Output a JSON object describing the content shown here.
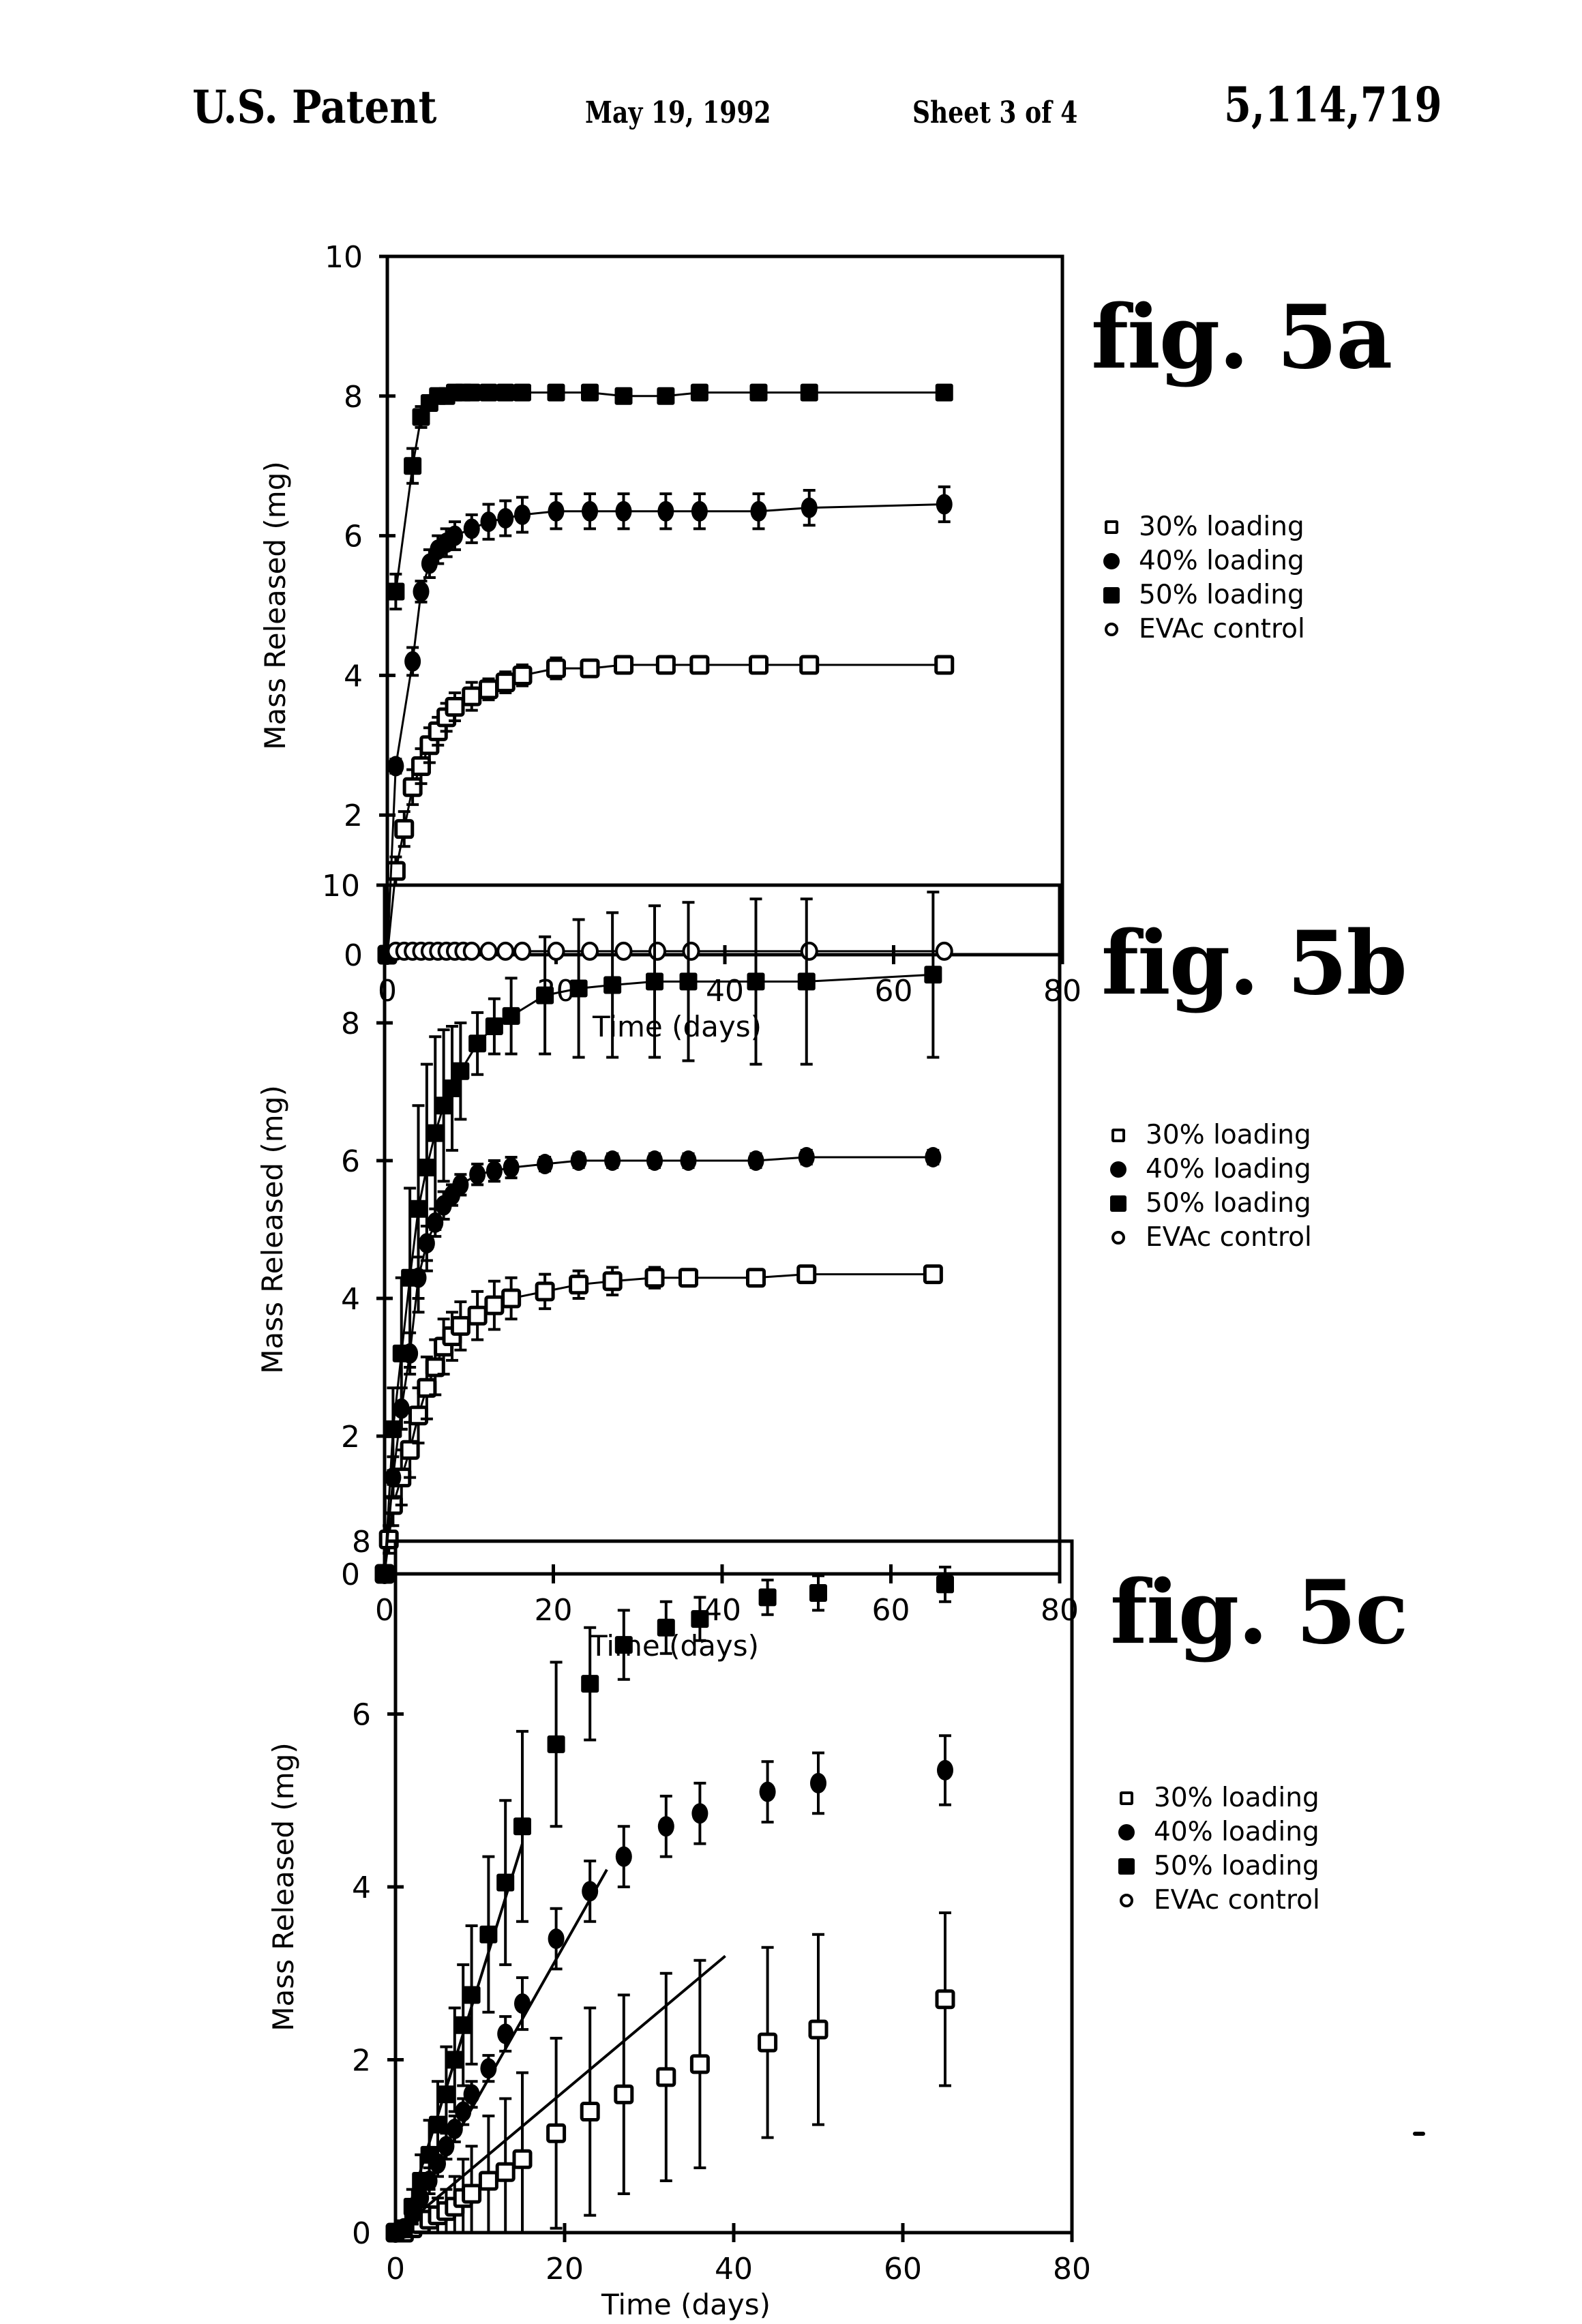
{
  "header": {
    "title": "U.S. Patent",
    "date": "May 19, 1992",
    "sheet": "Sheet 3 of 4",
    "patent_number": "5,114,719"
  },
  "legend_labels": [
    "30% loading",
    "40% loading",
    "50% loading",
    "EVAc control"
  ],
  "colors": {
    "ink": "#000000",
    "paper": "#ffffff"
  },
  "chart_data": [
    {
      "id": "fig5a",
      "figure_label": "fig. 5a",
      "type": "scatter",
      "title": "",
      "xlabel": "Time (days)",
      "ylabel": "Mass Released (mg)",
      "xlim": [
        0,
        80
      ],
      "ylim": [
        0,
        10
      ],
      "xticks": [
        0,
        20,
        40,
        60,
        80
      ],
      "yticks": [
        0,
        2,
        4,
        6,
        8,
        10
      ],
      "grid": false,
      "legend_position": "right",
      "series": [
        {
          "name": "30% loading",
          "marker": "open-square",
          "connected": true,
          "x": [
            0,
            1,
            2,
            3,
            4,
            5,
            6,
            7,
            8,
            10,
            12,
            14,
            16,
            20,
            24,
            28,
            33,
            37,
            44,
            50,
            66
          ],
          "y": [
            0,
            1.2,
            1.8,
            2.4,
            2.7,
            3.0,
            3.2,
            3.4,
            3.55,
            3.7,
            3.8,
            3.9,
            4.0,
            4.1,
            4.1,
            4.15,
            4.15,
            4.15,
            4.15,
            4.15,
            4.15
          ],
          "err": [
            0,
            0.2,
            0.25,
            0.25,
            0.25,
            0.25,
            0.2,
            0.2,
            0.2,
            0.2,
            0.15,
            0.15,
            0.15,
            0.15,
            0.1,
            0.1,
            0.1,
            0.1,
            0.05,
            0.05,
            0.05
          ]
        },
        {
          "name": "40% loading",
          "marker": "filled-circle",
          "connected": true,
          "x": [
            0,
            1,
            3,
            4,
            5,
            6,
            7,
            8,
            10,
            12,
            14,
            16,
            20,
            24,
            28,
            33,
            37,
            44,
            50,
            66
          ],
          "y": [
            0,
            2.7,
            4.2,
            5.2,
            5.6,
            5.8,
            5.9,
            6.0,
            6.1,
            6.2,
            6.25,
            6.3,
            6.35,
            6.35,
            6.35,
            6.35,
            6.35,
            6.35,
            6.4,
            6.45
          ],
          "err": [
            0,
            0.1,
            0.2,
            0.15,
            0.2,
            0.2,
            0.2,
            0.2,
            0.2,
            0.25,
            0.25,
            0.25,
            0.25,
            0.25,
            0.25,
            0.25,
            0.25,
            0.25,
            0.25,
            0.25
          ]
        },
        {
          "name": "50% loading",
          "marker": "filled-square",
          "connected": true,
          "x": [
            1,
            3,
            4,
            5,
            6,
            7,
            8,
            9,
            10,
            12,
            14,
            16,
            20,
            24,
            28,
            33,
            37,
            44,
            50,
            66
          ],
          "y": [
            5.2,
            7.0,
            7.7,
            7.9,
            8.0,
            8.0,
            8.05,
            8.05,
            8.05,
            8.05,
            8.05,
            8.05,
            8.05,
            8.05,
            8.0,
            8.0,
            8.05,
            8.05,
            8.05,
            8.05
          ],
          "err": [
            0.25,
            0.25,
            0.15,
            0.1,
            0.05,
            0.05,
            0.05,
            0.05,
            0.05,
            0.05,
            0.05,
            0.05,
            0.05,
            0.05,
            0.05,
            0.05,
            0.05,
            0.05,
            0.05,
            0.05
          ]
        },
        {
          "name": "EVAc control",
          "marker": "open-circle",
          "connected": true,
          "x": [
            1,
            2,
            3,
            4,
            5,
            6,
            7,
            8,
            9,
            10,
            12,
            14,
            16,
            20,
            24,
            28,
            32,
            36,
            50,
            66
          ],
          "y": [
            0.05,
            0.05,
            0.05,
            0.05,
            0.05,
            0.05,
            0.05,
            0.05,
            0.05,
            0.05,
            0.05,
            0.05,
            0.05,
            0.05,
            0.05,
            0.05,
            0.05,
            0.05,
            0.05,
            0.05
          ],
          "err": [
            0,
            0,
            0,
            0,
            0,
            0,
            0,
            0,
            0,
            0,
            0,
            0,
            0,
            0,
            0,
            0,
            0,
            0,
            0,
            0
          ]
        }
      ]
    },
    {
      "id": "fig5b",
      "figure_label": "fig. 5b",
      "type": "scatter",
      "title": "",
      "xlabel": "Time (days)",
      "ylabel": "Mass Released (mg)",
      "xlim": [
        0,
        80
      ],
      "ylim": [
        0,
        10
      ],
      "xticks": [
        0,
        20,
        40,
        60,
        80
      ],
      "yticks": [
        0,
        2,
        4,
        6,
        8,
        10
      ],
      "grid": false,
      "legend_position": "right",
      "series": [
        {
          "name": "30% loading",
          "marker": "open-square",
          "connected": true,
          "x": [
            0,
            0.5,
            1,
            2,
            3,
            4,
            5,
            6,
            7,
            8,
            9,
            11,
            13,
            15,
            19,
            23,
            27,
            32,
            36,
            44,
            50,
            65
          ],
          "y": [
            0,
            0.5,
            1.0,
            1.4,
            1.8,
            2.3,
            2.7,
            3.0,
            3.3,
            3.45,
            3.6,
            3.75,
            3.9,
            4.0,
            4.1,
            4.2,
            4.25,
            4.3,
            4.3,
            4.3,
            4.35,
            4.35
          ],
          "err": [
            0,
            0.2,
            0.3,
            0.4,
            0.4,
            0.4,
            0.45,
            0.4,
            0.4,
            0.35,
            0.35,
            0.35,
            0.35,
            0.3,
            0.25,
            0.2,
            0.2,
            0.15,
            0.1,
            0.1,
            0.05,
            0.1
          ]
        },
        {
          "name": "40% loading",
          "marker": "filled-circle",
          "connected": true,
          "x": [
            0,
            1,
            2,
            3,
            4,
            5,
            6,
            7,
            8,
            9,
            11,
            13,
            15,
            19,
            23,
            27,
            32,
            36,
            44,
            50,
            65
          ],
          "y": [
            0,
            1.4,
            2.4,
            3.2,
            4.3,
            4.8,
            5.1,
            5.35,
            5.5,
            5.65,
            5.8,
            5.85,
            5.9,
            5.95,
            6.0,
            6.0,
            6.0,
            6.0,
            6.0,
            6.05,
            6.05
          ],
          "err": [
            0,
            0.3,
            0.3,
            0.3,
            0.3,
            0.25,
            0.2,
            0.2,
            0.15,
            0.15,
            0.15,
            0.15,
            0.15,
            0.1,
            0.1,
            0.1,
            0.1,
            0.1,
            0.1,
            0.1,
            0.1
          ]
        },
        {
          "name": "50% loading",
          "marker": "filled-square",
          "connected": true,
          "x": [
            0,
            1,
            2,
            3,
            4,
            5,
            6,
            7,
            8,
            9,
            11,
            13,
            15,
            19,
            23,
            27,
            32,
            36,
            44,
            50,
            65
          ],
          "y": [
            0,
            2.1,
            3.2,
            4.3,
            5.3,
            5.9,
            6.4,
            6.8,
            7.05,
            7.3,
            7.7,
            7.95,
            8.1,
            8.4,
            8.5,
            8.55,
            8.6,
            8.6,
            8.6,
            8.6,
            8.7
          ],
          "err": [
            0,
            0.6,
            1.1,
            1.3,
            1.5,
            1.5,
            1.4,
            1.1,
            0.9,
            0.7,
            0.45,
            0.4,
            0.55,
            0.85,
            1.0,
            1.05,
            1.1,
            1.15,
            1.2,
            1.2,
            1.2
          ]
        }
      ]
    },
    {
      "id": "fig5c",
      "figure_label": "fig. 5c",
      "type": "scatter",
      "title": "",
      "xlabel": "Time (days)",
      "ylabel": "Mass Released (mg)",
      "xlim": [
        0,
        80
      ],
      "ylim": [
        0,
        8
      ],
      "xticks": [
        0,
        20,
        40,
        60,
        80
      ],
      "yticks": [
        0,
        2,
        4,
        6,
        8
      ],
      "grid": false,
      "legend_position": "right",
      "series": [
        {
          "name": "30% loading",
          "marker": "open-square",
          "connected": false,
          "x": [
            0,
            1,
            2,
            3,
            4,
            5,
            6,
            7,
            8,
            9,
            11,
            13,
            15,
            19,
            23,
            27,
            32,
            36,
            44,
            50,
            65
          ],
          "y": [
            0,
            0,
            0.05,
            0.1,
            0.15,
            0.2,
            0.25,
            0.3,
            0.4,
            0.45,
            0.6,
            0.7,
            0.85,
            1.15,
            1.4,
            1.6,
            1.8,
            1.95,
            2.2,
            2.35,
            2.7
          ],
          "err": [
            0,
            0,
            0.05,
            0.1,
            0.15,
            0.2,
            0.25,
            0.35,
            0.45,
            0.55,
            0.75,
            0.85,
            1.0,
            1.1,
            1.2,
            1.15,
            1.2,
            1.2,
            1.1,
            1.1,
            1.0
          ]
        },
        {
          "name": "40% loading",
          "marker": "filled-circle",
          "connected": false,
          "x": [
            0,
            1,
            2,
            3,
            4,
            5,
            6,
            7,
            8,
            9,
            11,
            13,
            15,
            19,
            23,
            27,
            32,
            36,
            44,
            50,
            65
          ],
          "y": [
            0,
            0.05,
            0.2,
            0.4,
            0.6,
            0.8,
            1.0,
            1.2,
            1.4,
            1.6,
            1.9,
            2.3,
            2.65,
            3.4,
            3.95,
            4.35,
            4.7,
            4.85,
            5.1,
            5.2,
            5.35
          ],
          "err": [
            0,
            0.05,
            0.1,
            0.15,
            0.15,
            0.15,
            0.15,
            0.15,
            0.15,
            0.15,
            0.15,
            0.2,
            0.3,
            0.35,
            0.35,
            0.35,
            0.35,
            0.35,
            0.35,
            0.35,
            0.4
          ]
        },
        {
          "name": "50% loading",
          "marker": "filled-square",
          "connected": false,
          "x": [
            0,
            1,
            2,
            3,
            4,
            5,
            6,
            7,
            8,
            9,
            11,
            13,
            15,
            19,
            23,
            27,
            32,
            36,
            44,
            50,
            65
          ],
          "y": [
            0,
            0.05,
            0.3,
            0.6,
            0.9,
            1.25,
            1.6,
            2.0,
            2.4,
            2.75,
            3.45,
            4.05,
            4.7,
            5.65,
            6.35,
            6.8,
            7.0,
            7.1,
            7.35,
            7.4,
            7.5
          ],
          "err": [
            0,
            0.05,
            0.2,
            0.3,
            0.4,
            0.5,
            0.55,
            0.6,
            0.7,
            0.8,
            0.9,
            0.95,
            1.1,
            0.95,
            0.65,
            0.4,
            0.3,
            0.25,
            0.2,
            0.2,
            0.2
          ]
        }
      ],
      "fit_lines": [
        {
          "series": "30% loading",
          "x": [
            0,
            39
          ],
          "y": [
            0.0,
            3.2
          ]
        },
        {
          "series": "40% loading",
          "x": [
            1,
            25
          ],
          "y": [
            0.05,
            4.2
          ]
        },
        {
          "series": "50% loading",
          "x": [
            1,
            15
          ],
          "y": [
            0.1,
            4.5
          ]
        }
      ]
    }
  ]
}
